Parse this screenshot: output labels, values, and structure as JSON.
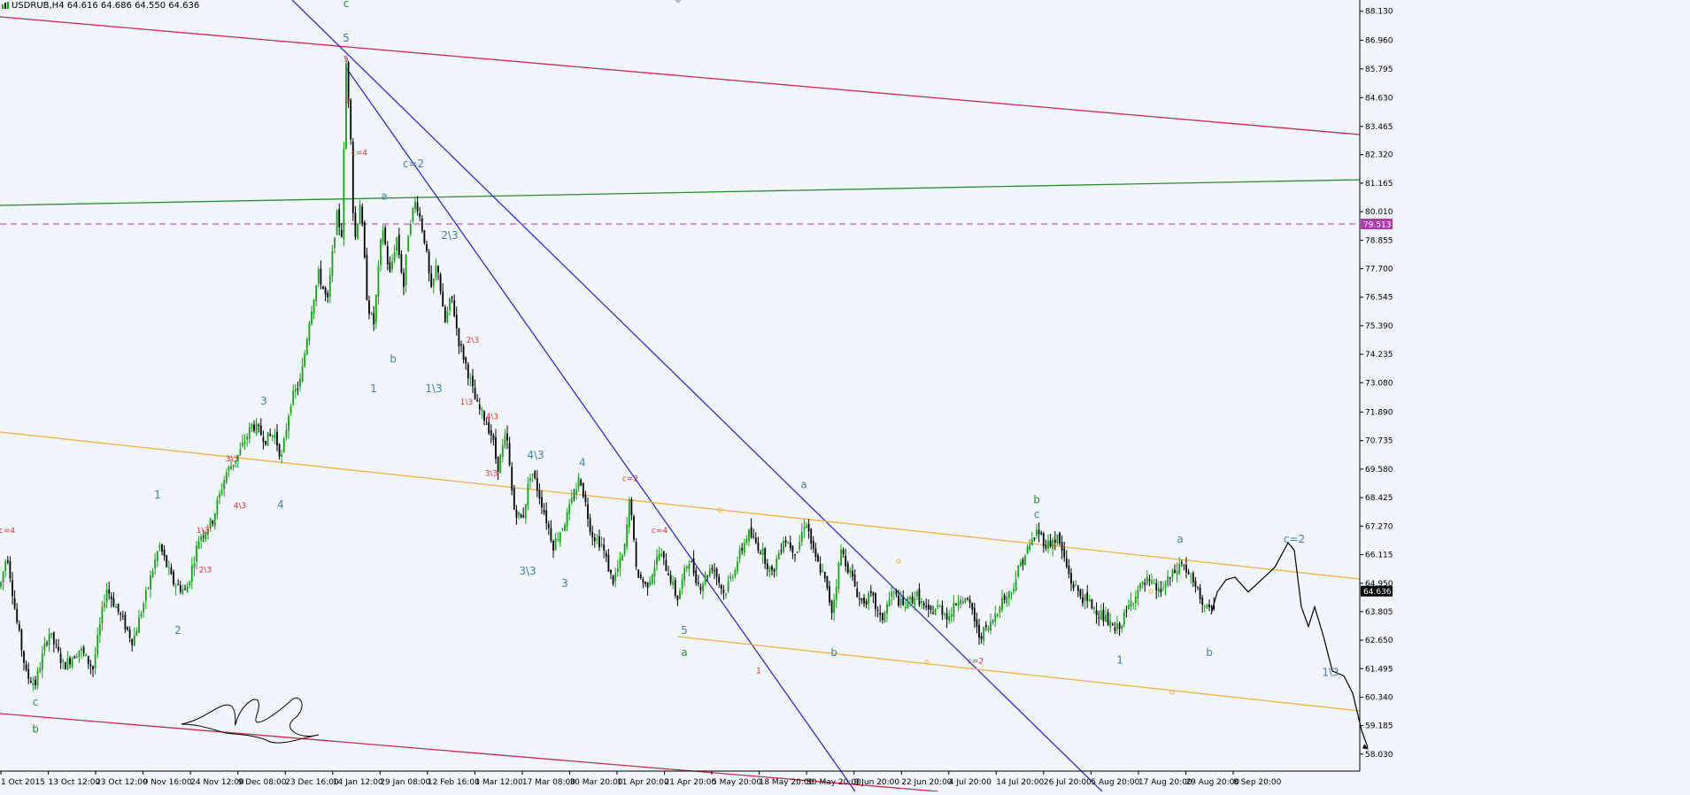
{
  "header": {
    "symbol_line": "USDRUB,H4  64.616 64.686 64.550 64.636"
  },
  "colors": {
    "background": "#f0f6fb",
    "bull_candle": "#1a9e1a",
    "bear_candle": "#000000",
    "trend_red": "#d6264b",
    "trend_green": "#2e8b2e",
    "trend_blue": "#3030c8",
    "trend_orange": "#f5b041",
    "dashed_level": "#c25ac2",
    "level_label_bg": "#b03ab0",
    "price_label_bg": "#000000",
    "wave_red": "#e03030",
    "wave_cyan": "#28b4d0",
    "wave_blue": "#4a80a8",
    "wave_green": "#2e8b2e"
  },
  "chart_data": {
    "type": "candlestick",
    "symbol": "USDRUB",
    "timeframe": "H4",
    "ohlc_last": {
      "open": 64.616,
      "high": 64.686,
      "low": 64.55,
      "close": 64.636
    },
    "y_axis": {
      "ylim": [
        57.81,
        88.3
      ],
      "tick_labels": [
        "88.130",
        "86.960",
        "85.795",
        "84.630",
        "83.465",
        "82.320",
        "81.165",
        "80.010",
        "78.855",
        "77.700",
        "76.545",
        "75.390",
        "74.235",
        "73.080",
        "71.890",
        "70.735",
        "69.580",
        "68.425",
        "67.270",
        "66.115",
        "64.950",
        "63.805",
        "62.650",
        "61.495",
        "60.340",
        "59.185",
        "58.030"
      ],
      "current_price": "64.636",
      "marked_level": "79.513"
    },
    "x_axis": {
      "tick_labels": [
        "1 Oct 2015",
        "13 Oct 12:00",
        "23 Oct 12:00",
        "9 Nov 16:00",
        "24 Nov 12:00",
        "9 Dec 08:00",
        "23 Dec 16:00",
        "14 Jan 12:00",
        "29 Jan 08:00",
        "12 Feb 16:00",
        "1 Mar 12:00",
        "17 Mar 08:00",
        "30 Mar 20:00",
        "11 Apr 20:00",
        "21 Apr 20:00",
        "5 May 20:00",
        "18 May 20:00",
        "30 May 20:00",
        "9 Jun 20:00",
        "22 Jun 20:00",
        "4 Jul 20:00",
        "14 Jul 20:00",
        "26 Jul 20:00",
        "5 Aug 20:00",
        "17 Aug 20:00",
        "29 Aug 20:00",
        "8 Sep 20:00"
      ]
    },
    "price_path": [
      [
        0,
        64.8
      ],
      [
        8,
        66.2
      ],
      [
        18,
        63.6
      ],
      [
        30,
        61.2
      ],
      [
        40,
        60.9
      ],
      [
        55,
        63.0
      ],
      [
        72,
        61.6
      ],
      [
        90,
        62.3
      ],
      [
        105,
        61.5
      ],
      [
        120,
        64.8
      ],
      [
        135,
        63.7
      ],
      [
        150,
        62.6
      ],
      [
        165,
        64.5
      ],
      [
        180,
        66.5
      ],
      [
        195,
        65.0
      ],
      [
        210,
        64.6
      ],
      [
        225,
        66.8
      ],
      [
        240,
        67.5
      ],
      [
        255,
        69.4
      ],
      [
        270,
        70.2
      ],
      [
        285,
        71.4
      ],
      [
        300,
        70.8
      ],
      [
        310,
        71.0
      ],
      [
        318,
        70.0
      ],
      [
        328,
        72.3
      ],
      [
        340,
        73.2
      ],
      [
        350,
        75.8
      ],
      [
        360,
        77.5
      ],
      [
        370,
        76.3
      ],
      [
        380,
        79.9
      ],
      [
        386,
        79.1
      ],
      [
        391,
        86.0
      ],
      [
        396,
        83.4
      ],
      [
        400,
        78.6
      ],
      [
        407,
        80.5
      ],
      [
        415,
        76.3
      ],
      [
        422,
        75.4
      ],
      [
        432,
        79.5
      ],
      [
        440,
        77.4
      ],
      [
        448,
        79.0
      ],
      [
        456,
        77.0
      ],
      [
        462,
        79.5
      ],
      [
        470,
        80.5
      ],
      [
        480,
        78.8
      ],
      [
        487,
        76.7
      ],
      [
        494,
        78.0
      ],
      [
        502,
        75.4
      ],
      [
        510,
        76.6
      ],
      [
        518,
        74.8
      ],
      [
        528,
        73.6
      ],
      [
        538,
        72.2
      ],
      [
        548,
        71.6
      ],
      [
        556,
        70.9
      ],
      [
        562,
        69.6
      ],
      [
        572,
        71.0
      ],
      [
        580,
        68.0
      ],
      [
        590,
        67.5
      ],
      [
        600,
        69.6
      ],
      [
        612,
        68.2
      ],
      [
        625,
        66.5
      ],
      [
        640,
        67.6
      ],
      [
        655,
        69.3
      ],
      [
        668,
        67.0
      ],
      [
        680,
        66.5
      ],
      [
        692,
        65.0
      ],
      [
        705,
        66.2
      ],
      [
        712,
        68.6
      ],
      [
        718,
        65.5
      ],
      [
        730,
        64.8
      ],
      [
        745,
        66.2
      ],
      [
        755,
        65.4
      ],
      [
        765,
        64.3
      ],
      [
        778,
        66.0
      ],
      [
        790,
        64.8
      ],
      [
        805,
        65.7
      ],
      [
        818,
        64.5
      ],
      [
        830,
        65.6
      ],
      [
        845,
        67.0
      ],
      [
        860,
        66.3
      ],
      [
        872,
        65.3
      ],
      [
        885,
        66.8
      ],
      [
        900,
        66.2
      ],
      [
        910,
        67.6
      ],
      [
        920,
        66.0
      ],
      [
        930,
        65.3
      ],
      [
        940,
        63.8
      ],
      [
        950,
        66.3
      ],
      [
        960,
        65.4
      ],
      [
        972,
        64.2
      ],
      [
        985,
        64.4
      ],
      [
        995,
        63.4
      ],
      [
        1008,
        64.6
      ],
      [
        1020,
        64.0
      ],
      [
        1035,
        64.5
      ],
      [
        1048,
        63.7
      ],
      [
        1060,
        64.0
      ],
      [
        1072,
        63.6
      ],
      [
        1085,
        64.5
      ],
      [
        1098,
        63.9
      ],
      [
        1105,
        62.8
      ],
      [
        1118,
        63.2
      ],
      [
        1130,
        64.2
      ],
      [
        1142,
        64.6
      ],
      [
        1152,
        65.7
      ],
      [
        1162,
        66.4
      ],
      [
        1172,
        67.1
      ],
      [
        1182,
        66.5
      ],
      [
        1195,
        66.8
      ],
      [
        1210,
        65.0
      ],
      [
        1222,
        64.4
      ],
      [
        1235,
        64.0
      ],
      [
        1248,
        63.5
      ],
      [
        1260,
        63.0
      ],
      [
        1270,
        63.6
      ],
      [
        1283,
        64.6
      ],
      [
        1296,
        65.0
      ],
      [
        1310,
        64.6
      ],
      [
        1325,
        65.3
      ],
      [
        1335,
        65.8
      ],
      [
        1348,
        64.9
      ],
      [
        1360,
        64.1
      ],
      [
        1368,
        63.7
      ],
      [
        1375,
        64.6
      ],
      [
        1385,
        65.1
      ],
      [
        1395,
        65.2
      ],
      [
        1410,
        64.6
      ],
      [
        1422,
        65.0
      ],
      [
        1440,
        65.6
      ],
      [
        1455,
        66.6
      ],
      [
        1462,
        66.3
      ],
      [
        1470,
        64.0
      ],
      [
        1478,
        63.2
      ],
      [
        1485,
        64.0
      ],
      [
        1495,
        62.8
      ],
      [
        1505,
        61.4
      ],
      [
        1518,
        61.2
      ],
      [
        1528,
        60.5
      ],
      [
        1538,
        59.0
      ],
      [
        1545,
        58.3
      ]
    ],
    "wave_labels": [
      {
        "text": "c",
        "x": 391,
        "y": 88.3,
        "color": "green",
        "size": "large"
      },
      {
        "text": "5",
        "x": 391,
        "y": 86.9,
        "color": "blue",
        "size": "large"
      },
      {
        "text": "5",
        "x": 391,
        "y": 86.1,
        "color": "red",
        "size": "small"
      },
      {
        "text": "c=4",
        "x": 406,
        "y": 82.3,
        "color": "red",
        "size": "small"
      },
      {
        "text": "2",
        "x": 393,
        "y": 84.4,
        "color": "red",
        "size": "small"
      },
      {
        "text": "c=2",
        "x": 467,
        "y": 81.8,
        "color": "blue",
        "size": "large"
      },
      {
        "text": "a",
        "x": 434,
        "y": 80.5,
        "color": "blue",
        "size": "large"
      },
      {
        "text": "b",
        "x": 444,
        "y": 73.9,
        "color": "blue",
        "size": "large"
      },
      {
        "text": "1",
        "x": 422,
        "y": 72.7,
        "color": "blue",
        "size": "large"
      },
      {
        "text": "2\\3",
        "x": 508,
        "y": 78.9,
        "color": "blue",
        "size": "large"
      },
      {
        "text": "1\\3",
        "x": 490,
        "y": 72.7,
        "color": "blue",
        "size": "large"
      },
      {
        "text": "2\\3",
        "x": 534,
        "y": 74.7,
        "color": "red",
        "size": "small"
      },
      {
        "text": "1\\3",
        "x": 527,
        "y": 72.2,
        "color": "red",
        "size": "small"
      },
      {
        "text": "4\\3",
        "x": 556,
        "y": 71.6,
        "color": "red",
        "size": "small"
      },
      {
        "text": "3\\3",
        "x": 555,
        "y": 69.3,
        "color": "red",
        "size": "small"
      },
      {
        "text": "4\\3",
        "x": 605,
        "y": 70.0,
        "color": "blue",
        "size": "large"
      },
      {
        "text": "4",
        "x": 658,
        "y": 69.7,
        "color": "blue",
        "size": "large"
      },
      {
        "text": "3\\3",
        "x": 596,
        "y": 65.3,
        "color": "blue",
        "size": "large"
      },
      {
        "text": "3",
        "x": 638,
        "y": 64.8,
        "color": "blue",
        "size": "large"
      },
      {
        "text": "c=2",
        "x": 712,
        "y": 69.1,
        "color": "red",
        "size": "small"
      },
      {
        "text": "c=4",
        "x": 745,
        "y": 67.0,
        "color": "red",
        "size": "small"
      },
      {
        "text": "5",
        "x": 773,
        "y": 62.9,
        "color": "blue",
        "size": "large"
      },
      {
        "text": "a",
        "x": 773,
        "y": 62.0,
        "color": "green",
        "size": "large"
      },
      {
        "text": "a",
        "x": 908,
        "y": 68.8,
        "color": "blue",
        "size": "large"
      },
      {
        "text": "b",
        "x": 942,
        "y": 62.0,
        "color": "blue",
        "size": "large"
      },
      {
        "text": "b",
        "x": 1171,
        "y": 68.2,
        "color": "green",
        "size": "large"
      },
      {
        "text": "c",
        "x": 1171,
        "y": 67.6,
        "color": "blue",
        "size": "large"
      },
      {
        "text": "c=2",
        "x": 1102,
        "y": 61.7,
        "color": "red",
        "size": "small"
      },
      {
        "text": "1",
        "x": 1265,
        "y": 61.7,
        "color": "blue",
        "size": "large"
      },
      {
        "text": "a",
        "x": 1333,
        "y": 66.6,
        "color": "blue",
        "size": "large"
      },
      {
        "text": "b",
        "x": 1366,
        "y": 62.0,
        "color": "blue",
        "size": "large"
      },
      {
        "text": "c=2",
        "x": 1462,
        "y": 66.6,
        "color": "blue",
        "size": "large"
      },
      {
        "text": "1\\3",
        "x": 1503,
        "y": 61.2,
        "color": "blue",
        "size": "large"
      },
      {
        "text": "1",
        "x": 178,
        "y": 68.4,
        "color": "blue",
        "size": "large"
      },
      {
        "text": "2",
        "x": 201,
        "y": 62.9,
        "color": "blue",
        "size": "large"
      },
      {
        "text": "3",
        "x": 298,
        "y": 72.2,
        "color": "blue",
        "size": "large"
      },
      {
        "text": "4",
        "x": 317,
        "y": 68.0,
        "color": "blue",
        "size": "large"
      },
      {
        "text": "3\\3",
        "x": 262,
        "y": 69.9,
        "color": "red",
        "size": "small"
      },
      {
        "text": "4\\3",
        "x": 271,
        "y": 68.0,
        "color": "red",
        "size": "small"
      },
      {
        "text": "1\\3",
        "x": 229,
        "y": 67.0,
        "color": "red",
        "size": "small"
      },
      {
        "text": "2\\3",
        "x": 232,
        "y": 65.4,
        "color": "red",
        "size": "small"
      },
      {
        "text": "c=4",
        "x": 8,
        "y": 67.0,
        "color": "red",
        "size": "small"
      },
      {
        "text": "c",
        "x": 40,
        "y": 60.0,
        "color": "blue",
        "size": "large"
      },
      {
        "text": "b",
        "x": 40,
        "y": 58.9,
        "color": "green",
        "size": "large"
      },
      {
        "text": "1",
        "x": 857,
        "y": 61.3,
        "color": "red",
        "size": "small"
      }
    ]
  }
}
